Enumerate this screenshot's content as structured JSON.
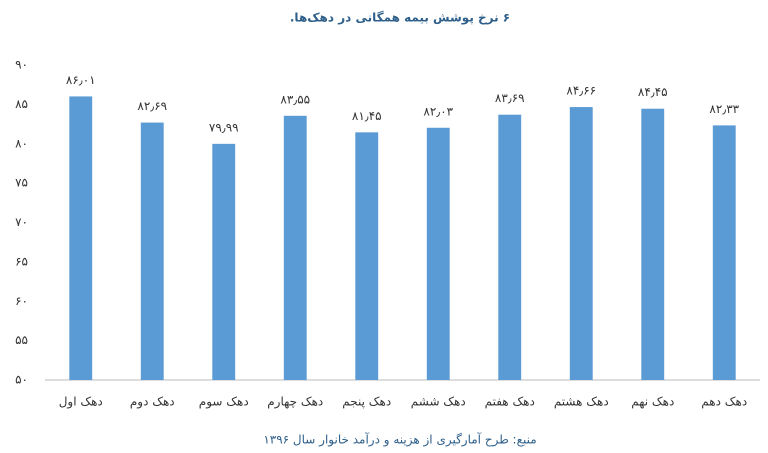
{
  "chart_data": {
    "type": "bar",
    "title": "۶ نرخ پوشش بیمه همگانی در دهک‌ها.",
    "source": "منبع: طرح آمارگیری از هزینه و درآمد خانوار سال ۱۳۹۶",
    "categories": [
      "دهک اول",
      "دهک دوم",
      "دهک سوم",
      "دهک چهارم",
      "دهک پنجم",
      "دهک ششم",
      "دهک هفتم",
      "دهک هشتم",
      "دهک نهم",
      "دهک دهم"
    ],
    "values": [
      86.01,
      82.69,
      79.99,
      83.55,
      81.45,
      82.03,
      83.69,
      84.66,
      84.45,
      82.33
    ],
    "value_labels": [
      "۸۶٫۰۱",
      "۸۲٫۶۹",
      "۷۹٫۹۹",
      "۸۳٫۵۵",
      "۸۱٫۴۵",
      "۸۲٫۰۳",
      "۸۳٫۶۹",
      "۸۴٫۶۶",
      "۸۴٫۴۵",
      "۸۲٫۳۳"
    ],
    "color": "#5b9bd5",
    "ylim": [
      50,
      90
    ],
    "yticks": [
      {
        "value": 50,
        "label": "۵۰"
      },
      {
        "value": 55,
        "label": "۵۵"
      },
      {
        "value": 60,
        "label": "۶۰"
      },
      {
        "value": 65,
        "label": "۶۵"
      },
      {
        "value": 70,
        "label": "۷۰"
      },
      {
        "value": 75,
        "label": "۷۵"
      },
      {
        "value": 80,
        "label": "۸۰"
      },
      {
        "value": 85,
        "label": "۸۵"
      },
      {
        "value": 90,
        "label": "۹۰"
      }
    ],
    "grid": false
  }
}
